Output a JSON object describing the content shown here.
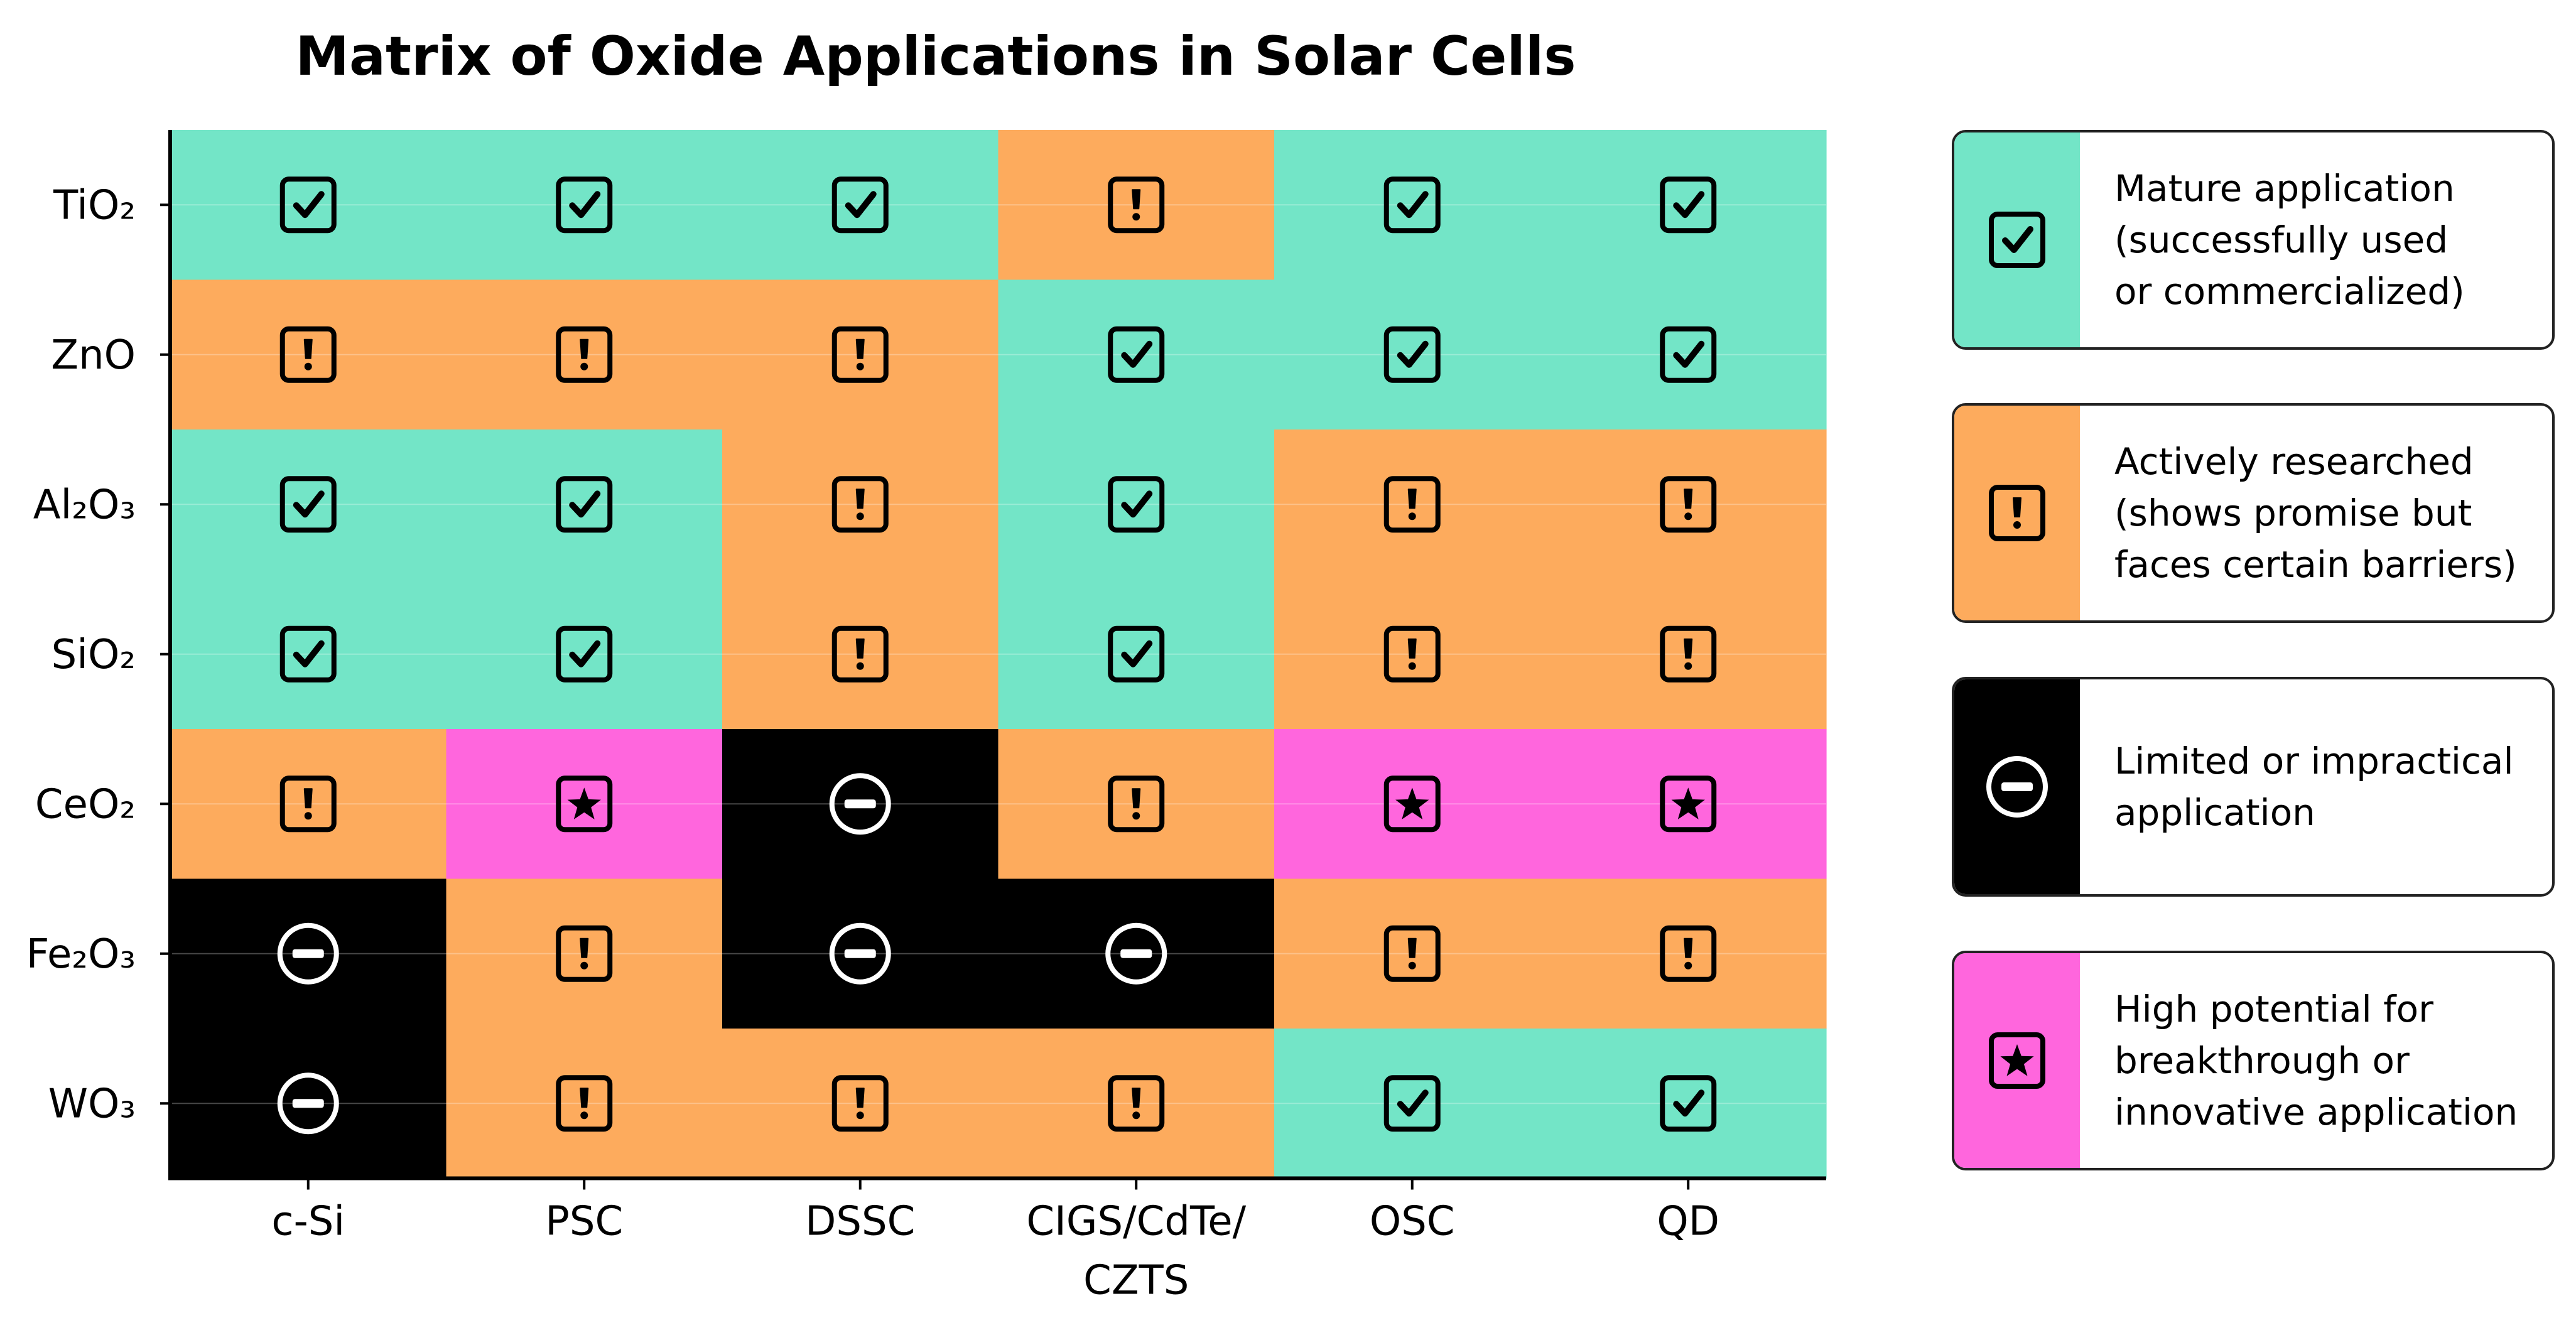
{
  "title": "Matrix of Oxide Applications in Solar Cells",
  "colors": {
    "mature": "#73e5c7",
    "researched": "#fdab5d",
    "limited": "#000000",
    "high_potential": "#ff66dd"
  },
  "icons": {
    "mature": "check-box-icon",
    "researched": "exclamation-box-icon",
    "limited": "minus-circle-icon",
    "high_potential": "star-box-icon"
  },
  "chart_data": {
    "type": "heatmap",
    "title": "Matrix of Oxide Applications in Solar Cells",
    "rows": [
      "TiO₂",
      "ZnO",
      "Al₂O₃",
      "SiO₂",
      "CeO₂",
      "Fe₂O₃",
      "WO₃"
    ],
    "columns": [
      "c-Si",
      "PSC",
      "DSSC",
      "CIGS/CdTe/\nCZTS",
      "OSC",
      "QD"
    ],
    "categories": [
      "mature",
      "researched",
      "limited",
      "high_potential"
    ],
    "values": [
      [
        "mature",
        "mature",
        "mature",
        "researched",
        "mature",
        "mature"
      ],
      [
        "researched",
        "researched",
        "researched",
        "mature",
        "mature",
        "mature"
      ],
      [
        "mature",
        "mature",
        "researched",
        "mature",
        "researched",
        "researched"
      ],
      [
        "mature",
        "mature",
        "researched",
        "mature",
        "researched",
        "researched"
      ],
      [
        "researched",
        "high_potential",
        "limited",
        "researched",
        "high_potential",
        "high_potential"
      ],
      [
        "limited",
        "researched",
        "limited",
        "limited",
        "researched",
        "researched"
      ],
      [
        "limited",
        "researched",
        "researched",
        "researched",
        "mature",
        "mature"
      ]
    ],
    "legend_position": "right"
  },
  "legend": [
    {
      "key": "mature",
      "label": "Mature application\n(successfully used\nor commercialized)"
    },
    {
      "key": "researched",
      "label": "Actively researched\n(shows promise but\nfaces certain barriers)"
    },
    {
      "key": "limited",
      "label": "Limited or impractical\napplication"
    },
    {
      "key": "high_potential",
      "label": "High potential for\nbreakthrough or\ninnovative application"
    }
  ]
}
